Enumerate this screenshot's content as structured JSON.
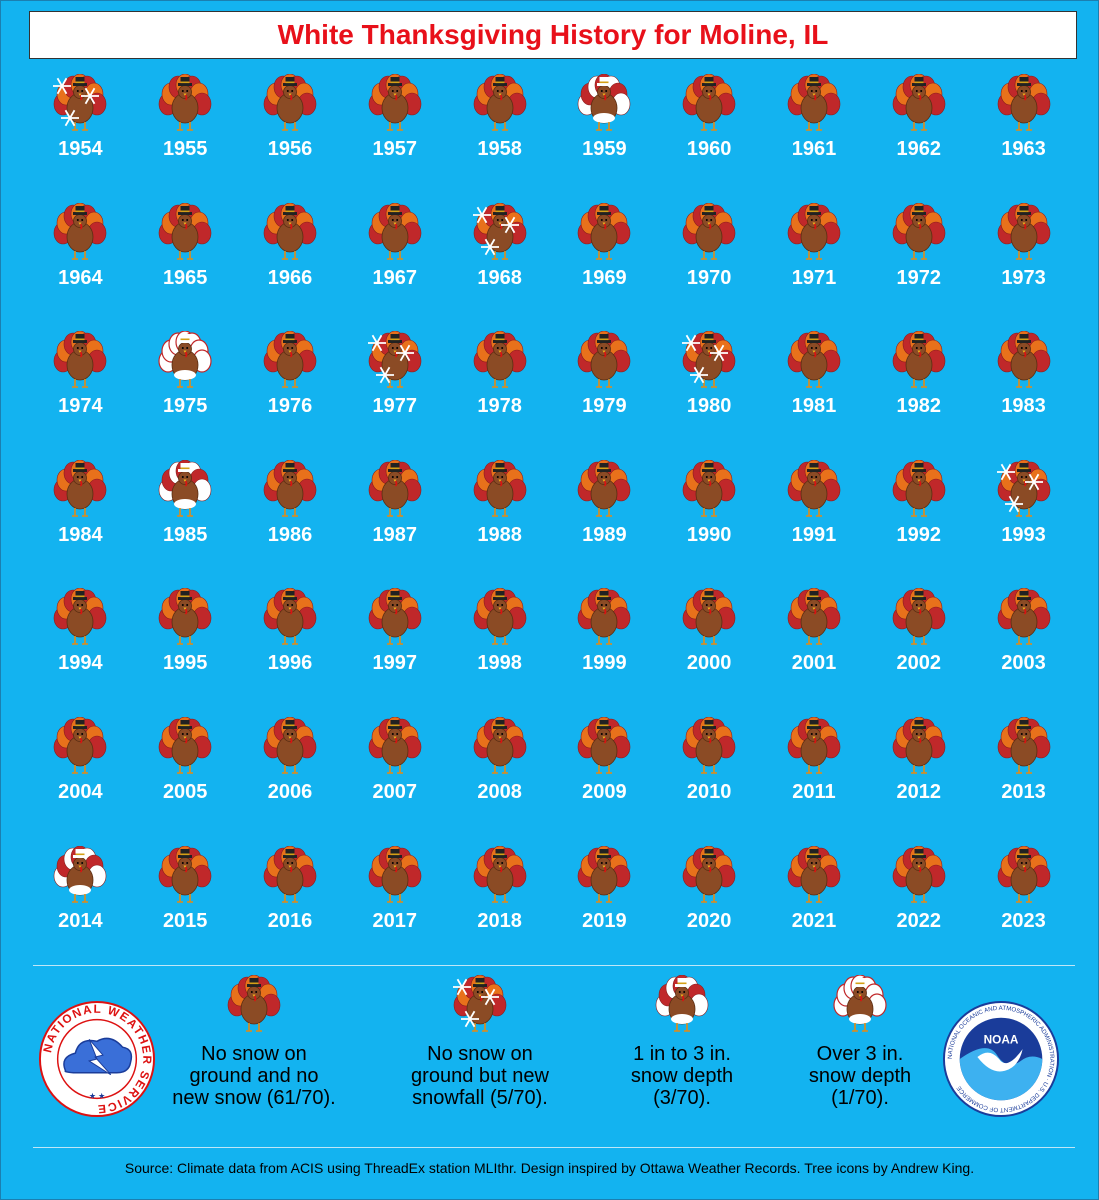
{
  "title": "White Thanksgiving History for Moline, IL",
  "colors": {
    "background": "#13b3f0",
    "title_text": "#e8101a",
    "year_text": "#ffffff"
  },
  "years": [
    {
      "year": "1954",
      "category": "snowfall"
    },
    {
      "year": "1955",
      "category": "none"
    },
    {
      "year": "1956",
      "category": "none"
    },
    {
      "year": "1957",
      "category": "none"
    },
    {
      "year": "1958",
      "category": "none"
    },
    {
      "year": "1959",
      "category": "depth_1_3"
    },
    {
      "year": "1960",
      "category": "none"
    },
    {
      "year": "1961",
      "category": "none"
    },
    {
      "year": "1962",
      "category": "none"
    },
    {
      "year": "1963",
      "category": "none"
    },
    {
      "year": "1964",
      "category": "none"
    },
    {
      "year": "1965",
      "category": "none"
    },
    {
      "year": "1966",
      "category": "none"
    },
    {
      "year": "1967",
      "category": "none"
    },
    {
      "year": "1968",
      "category": "snowfall"
    },
    {
      "year": "1969",
      "category": "none"
    },
    {
      "year": "1970",
      "category": "none"
    },
    {
      "year": "1971",
      "category": "none"
    },
    {
      "year": "1972",
      "category": "none"
    },
    {
      "year": "1973",
      "category": "none"
    },
    {
      "year": "1974",
      "category": "none"
    },
    {
      "year": "1975",
      "category": "depth_over_3"
    },
    {
      "year": "1976",
      "category": "none"
    },
    {
      "year": "1977",
      "category": "snowfall"
    },
    {
      "year": "1978",
      "category": "none"
    },
    {
      "year": "1979",
      "category": "none"
    },
    {
      "year": "1980",
      "category": "snowfall"
    },
    {
      "year": "1981",
      "category": "none"
    },
    {
      "year": "1982",
      "category": "none"
    },
    {
      "year": "1983",
      "category": "none"
    },
    {
      "year": "1984",
      "category": "none"
    },
    {
      "year": "1985",
      "category": "depth_1_3"
    },
    {
      "year": "1986",
      "category": "none"
    },
    {
      "year": "1987",
      "category": "none"
    },
    {
      "year": "1988",
      "category": "none"
    },
    {
      "year": "1989",
      "category": "none"
    },
    {
      "year": "1990",
      "category": "none"
    },
    {
      "year": "1991",
      "category": "none"
    },
    {
      "year": "1992",
      "category": "none"
    },
    {
      "year": "1993",
      "category": "snowfall"
    },
    {
      "year": "1994",
      "category": "none"
    },
    {
      "year": "1995",
      "category": "none"
    },
    {
      "year": "1996",
      "category": "none"
    },
    {
      "year": "1997",
      "category": "none"
    },
    {
      "year": "1998",
      "category": "none"
    },
    {
      "year": "1999",
      "category": "none"
    },
    {
      "year": "2000",
      "category": "none"
    },
    {
      "year": "2001",
      "category": "none"
    },
    {
      "year": "2002",
      "category": "none"
    },
    {
      "year": "2003",
      "category": "none"
    },
    {
      "year": "2004",
      "category": "none"
    },
    {
      "year": "2005",
      "category": "none"
    },
    {
      "year": "2006",
      "category": "none"
    },
    {
      "year": "2007",
      "category": "none"
    },
    {
      "year": "2008",
      "category": "none"
    },
    {
      "year": "2009",
      "category": "none"
    },
    {
      "year": "2010",
      "category": "none"
    },
    {
      "year": "2011",
      "category": "none"
    },
    {
      "year": "2012",
      "category": "none"
    },
    {
      "year": "2013",
      "category": "none"
    },
    {
      "year": "2014",
      "category": "depth_1_3"
    },
    {
      "year": "2015",
      "category": "none"
    },
    {
      "year": "2016",
      "category": "none"
    },
    {
      "year": "2017",
      "category": "none"
    },
    {
      "year": "2018",
      "category": "none"
    },
    {
      "year": "2019",
      "category": "none"
    },
    {
      "year": "2020",
      "category": "none"
    },
    {
      "year": "2021",
      "category": "none"
    },
    {
      "year": "2022",
      "category": "none"
    },
    {
      "year": "2023",
      "category": "none"
    }
  ],
  "legend": [
    {
      "category": "none",
      "text": "No snow on\nground and no\nnew snow (61/70)."
    },
    {
      "category": "snowfall",
      "text": "No snow on\nground but new\nsnowfall (5/70)."
    },
    {
      "category": "depth_1_3",
      "text": "1 in to 3 in.\nsnow depth\n(3/70)."
    },
    {
      "category": "depth_over_3",
      "text": "Over 3 in.\nsnow depth\n(1/70)."
    }
  ],
  "logos": {
    "nws_text": "NATIONAL WEATHER SERVICE",
    "noaa_text": "NOAA",
    "noaa_ring_text": "NATIONAL OCEANIC AND ATMOSPHERIC ADMINISTRATION · U.S. DEPARTMENT OF COMMERCE"
  },
  "source": "Source: Climate data from ACIS using ThreadEx station MLIthr. Design inspired by Ottawa Weather Records. Tree icons by Andrew King."
}
